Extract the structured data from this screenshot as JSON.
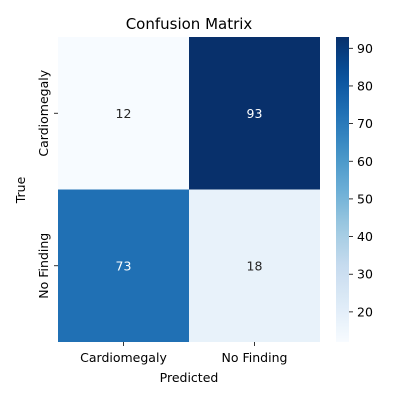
{
  "chart_data": {
    "type": "heatmap",
    "title": "Confusion Matrix",
    "xlabel": "Predicted",
    "ylabel": "True",
    "x_categories": [
      "Cardiomegaly",
      "No Finding"
    ],
    "y_categories": [
      "Cardiomegaly",
      "No Finding"
    ],
    "values": [
      [
        12,
        93
      ],
      [
        73,
        18
      ]
    ],
    "colorbar": {
      "min": 12,
      "max": 93,
      "ticks": [
        20,
        30,
        40,
        50,
        60,
        70,
        80,
        90
      ],
      "colormap": "Blues"
    },
    "annotations": true
  }
}
